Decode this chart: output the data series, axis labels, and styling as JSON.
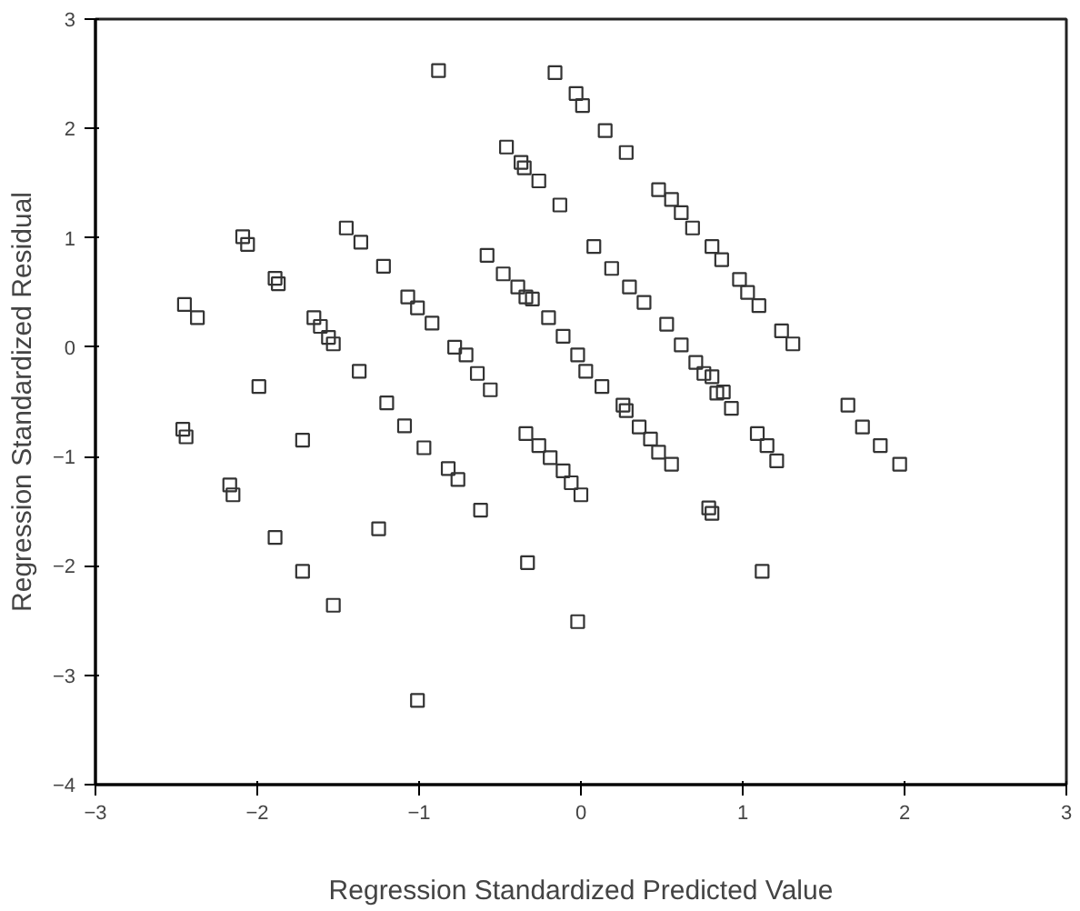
{
  "chart_data": {
    "type": "scatter",
    "xlabel": "Regression Standardized Predicted Value",
    "ylabel": "Regression Standardized Residual",
    "xlim": [
      -3,
      3
    ],
    "ylim": [
      -4,
      3
    ],
    "xticks": [
      -3,
      -2,
      -1,
      0,
      1,
      2,
      3
    ],
    "yticks": [
      -4,
      -3,
      -2,
      -1,
      0,
      1,
      2,
      3
    ],
    "grid": false,
    "marker": "square",
    "series": [
      {
        "color": "#333333",
        "x": [
          -0.88,
          -2.46,
          -2.44,
          -2.45,
          -2.37,
          -2.09,
          -2.06,
          -1.89,
          -1.87,
          -1.99,
          -2.17,
          -2.15,
          -1.89,
          -1.72,
          -1.53,
          -1.72,
          -1.65,
          -1.61,
          -1.56,
          -1.53,
          -1.45,
          -1.36,
          -1.22,
          -1.07,
          -1.01,
          -0.92,
          -1.37,
          -1.2,
          -1.09,
          -0.97,
          -0.82,
          -0.76,
          -1.25,
          -1.01,
          -0.78,
          -0.71,
          -0.64,
          -0.56,
          -0.62,
          -0.33,
          -0.46,
          -0.37,
          -0.35,
          -0.26,
          -0.13,
          -0.58,
          -0.48,
          -0.39,
          -0.34,
          -0.16,
          -0.03,
          0.01,
          0.15,
          0.28,
          0.48,
          0.56,
          0.62,
          0.69,
          0.81,
          0.87,
          0.98,
          1.03,
          1.1,
          1.24,
          1.31,
          0.08,
          0.19,
          0.3,
          0.39,
          0.53,
          0.62,
          0.71,
          0.81,
          0.88,
          0.93,
          -0.3,
          -0.2,
          -0.11,
          -0.02,
          0.03,
          0.13,
          0.26,
          0.28,
          0.36,
          0.43,
          0.48,
          0.56,
          0.76,
          0.84,
          -0.34,
          -0.26,
          -0.19,
          -0.11,
          -0.06,
          0.0,
          1.09,
          1.15,
          1.21,
          1.65,
          1.74,
          1.85,
          1.97,
          0.79,
          0.81,
          1.12,
          -0.02
        ],
        "values": [
          2.53,
          -0.75,
          -0.82,
          0.39,
          0.27,
          1.01,
          0.94,
          0.63,
          0.58,
          -0.36,
          -1.26,
          -1.35,
          -1.74,
          -2.05,
          -2.36,
          -0.85,
          0.27,
          0.19,
          0.09,
          0.03,
          1.09,
          0.96,
          0.74,
          0.46,
          0.36,
          0.22,
          -0.22,
          -0.51,
          -0.72,
          -0.92,
          -1.11,
          -1.21,
          -1.66,
          -3.23,
          0.0,
          -0.07,
          -0.24,
          -0.39,
          -1.49,
          -1.97,
          1.83,
          1.69,
          1.64,
          1.52,
          1.3,
          0.84,
          0.67,
          0.55,
          0.46,
          2.51,
          2.32,
          2.21,
          1.98,
          1.78,
          1.44,
          1.35,
          1.23,
          1.09,
          0.92,
          0.8,
          0.62,
          0.5,
          0.38,
          0.15,
          0.03,
          0.92,
          0.72,
          0.55,
          0.41,
          0.21,
          0.02,
          -0.14,
          -0.27,
          -0.41,
          -0.56,
          0.44,
          0.27,
          0.1,
          -0.07,
          -0.22,
          -0.36,
          -0.53,
          -0.58,
          -0.73,
          -0.84,
          -0.96,
          -1.07,
          -0.24,
          -0.42,
          -0.79,
          -0.9,
          -1.01,
          -1.13,
          -1.24,
          -1.35,
          -0.79,
          -0.9,
          -1.04,
          -0.53,
          -0.73,
          -0.9,
          -1.07,
          -1.47,
          -1.52,
          -2.05,
          -2.51
        ]
      }
    ]
  }
}
